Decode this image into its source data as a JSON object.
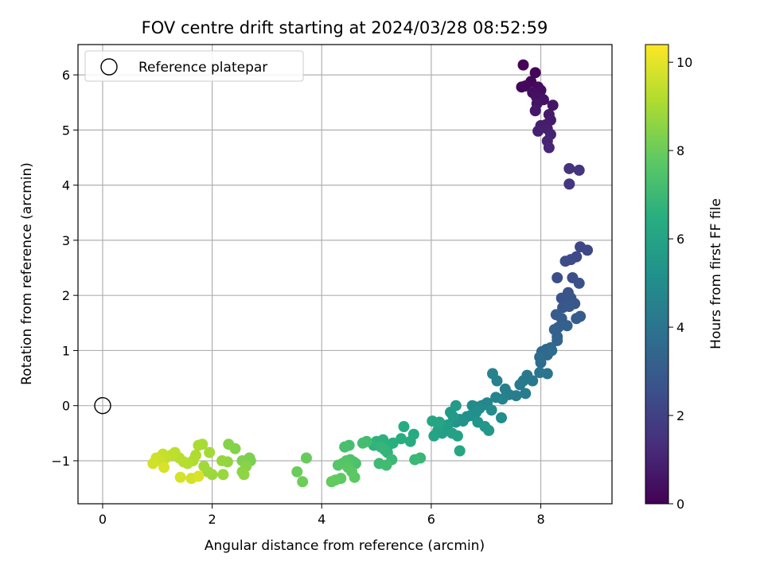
{
  "chart_data": {
    "type": "scatter",
    "title": "FOV centre drift starting at 2024/03/28 08:52:59",
    "xlabel": "Angular distance from reference (arcmin)",
    "ylabel": "Rotation from reference (arcmin)",
    "xlim": [
      -0.45,
      9.3
    ],
    "ylim": [
      -1.78,
      6.55
    ],
    "xticks": [
      0,
      2,
      4,
      6,
      8
    ],
    "yticks": [
      -1,
      0,
      1,
      2,
      3,
      4,
      5,
      6
    ],
    "grid": true,
    "legend": {
      "placement": "top-left",
      "entries": [
        "Reference platepar"
      ]
    },
    "colorbar": {
      "label": "Hours from first FF file",
      "range": [
        0,
        10.4
      ],
      "ticks": [
        0,
        2,
        4,
        6,
        8,
        10
      ],
      "colormap": "viridis"
    },
    "reference_point": {
      "name": "Reference platepar",
      "x": 0,
      "y": 0
    },
    "points": [
      [
        7.68,
        6.18,
        0.05
      ],
      [
        7.9,
        6.04,
        0.1
      ],
      [
        7.82,
        5.88,
        0.15
      ],
      [
        7.65,
        5.78,
        0.2
      ],
      [
        7.72,
        5.8,
        0.25
      ],
      [
        7.95,
        5.78,
        0.3
      ],
      [
        8.0,
        5.72,
        0.35
      ],
      [
        7.85,
        5.68,
        0.4
      ],
      [
        7.92,
        5.6,
        0.45
      ],
      [
        8.05,
        5.55,
        0.5
      ],
      [
        7.93,
        5.48,
        0.55
      ],
      [
        8.22,
        5.45,
        0.6
      ],
      [
        7.9,
        5.35,
        0.65
      ],
      [
        8.15,
        5.28,
        0.7
      ],
      [
        8.18,
        5.18,
        0.75
      ],
      [
        8.1,
        5.1,
        0.8
      ],
      [
        8.0,
        5.08,
        0.85
      ],
      [
        8.12,
        5.02,
        0.9
      ],
      [
        7.95,
        4.98,
        0.95
      ],
      [
        8.18,
        4.92,
        1.0
      ],
      [
        8.12,
        4.8,
        1.05
      ],
      [
        8.15,
        4.68,
        1.1
      ],
      [
        8.52,
        4.3,
        1.5
      ],
      [
        8.7,
        4.27,
        1.55
      ],
      [
        8.52,
        4.02,
        1.6
      ],
      [
        8.72,
        2.88,
        2.2
      ],
      [
        8.85,
        2.82,
        2.25
      ],
      [
        8.65,
        2.7,
        2.3
      ],
      [
        8.55,
        2.65,
        2.35
      ],
      [
        8.45,
        2.62,
        2.4
      ],
      [
        8.3,
        2.32,
        2.45
      ],
      [
        8.58,
        2.32,
        2.5
      ],
      [
        8.7,
        2.22,
        2.55
      ],
      [
        8.5,
        2.05,
        2.6
      ],
      [
        8.38,
        1.95,
        2.65
      ],
      [
        8.45,
        1.88,
        2.7
      ],
      [
        8.55,
        1.95,
        2.75
      ],
      [
        8.62,
        1.85,
        2.8
      ],
      [
        8.4,
        1.78,
        2.85
      ],
      [
        8.52,
        1.8,
        2.9
      ],
      [
        8.72,
        1.62,
        2.95
      ],
      [
        8.65,
        1.58,
        3.0
      ],
      [
        8.28,
        1.65,
        3.05
      ],
      [
        8.38,
        1.58,
        3.1
      ],
      [
        8.32,
        1.42,
        3.15
      ],
      [
        8.48,
        1.45,
        3.2
      ],
      [
        8.25,
        1.38,
        3.25
      ],
      [
        8.3,
        1.25,
        3.3
      ],
      [
        8.3,
        1.18,
        3.35
      ],
      [
        8.18,
        1.05,
        3.4
      ],
      [
        8.1,
        1.02,
        3.45
      ],
      [
        8.02,
        0.98,
        3.5
      ],
      [
        8.12,
        0.92,
        3.55
      ],
      [
        8.2,
        1.0,
        3.6
      ],
      [
        7.98,
        0.88,
        3.65
      ],
      [
        8.0,
        0.78,
        3.7
      ],
      [
        8.12,
        0.58,
        4.0
      ],
      [
        7.98,
        0.6,
        4.05
      ],
      [
        7.85,
        0.45,
        4.1
      ],
      [
        7.75,
        0.55,
        4.15
      ],
      [
        7.68,
        0.45,
        4.2
      ],
      [
        7.62,
        0.38,
        4.25
      ],
      [
        7.72,
        0.22,
        4.3
      ],
      [
        7.55,
        0.18,
        4.35
      ],
      [
        7.42,
        0.2,
        4.4
      ],
      [
        7.35,
        0.3,
        4.45
      ],
      [
        7.2,
        0.45,
        4.5
      ],
      [
        7.12,
        0.58,
        4.55
      ],
      [
        7.3,
        0.12,
        4.6
      ],
      [
        7.18,
        0.15,
        4.65
      ],
      [
        7.02,
        0.05,
        4.7
      ],
      [
        6.98,
        0.02,
        4.75
      ],
      [
        6.92,
        0.0,
        4.8
      ],
      [
        6.88,
        -0.05,
        4.85
      ],
      [
        6.8,
        -0.02,
        4.9
      ],
      [
        6.75,
        0.0,
        4.95
      ],
      [
        7.1,
        -0.08,
        5.0
      ],
      [
        7.28,
        -0.22,
        5.05
      ],
      [
        6.82,
        -0.12,
        5.1
      ],
      [
        6.72,
        -0.18,
        5.15
      ],
      [
        6.65,
        -0.2,
        5.2
      ],
      [
        6.58,
        -0.28,
        5.25
      ],
      [
        6.52,
        -0.25,
        5.3
      ],
      [
        6.45,
        -0.3,
        5.35
      ],
      [
        6.85,
        -0.3,
        5.4
      ],
      [
        6.98,
        -0.38,
        5.45
      ],
      [
        7.05,
        -0.45,
        5.5
      ],
      [
        6.4,
        -0.2,
        5.55
      ],
      [
        6.35,
        -0.12,
        5.6
      ],
      [
        6.45,
        0.0,
        5.65
      ],
      [
        6.3,
        -0.35,
        5.7
      ],
      [
        6.25,
        -0.4,
        5.75
      ],
      [
        6.2,
        -0.5,
        5.8
      ],
      [
        6.38,
        -0.5,
        5.85
      ],
      [
        6.48,
        -0.55,
        5.9
      ],
      [
        6.12,
        -0.45,
        5.95
      ],
      [
        6.05,
        -0.55,
        6.0
      ],
      [
        6.15,
        -0.3,
        6.05
      ],
      [
        6.02,
        -0.28,
        6.1
      ],
      [
        6.52,
        -0.82,
        6.15
      ],
      [
        5.68,
        -0.52,
        6.3
      ],
      [
        5.62,
        -0.65,
        6.35
      ],
      [
        5.5,
        -0.38,
        6.4
      ],
      [
        5.45,
        -0.6,
        6.45
      ],
      [
        5.3,
        -0.68,
        6.5
      ],
      [
        5.22,
        -0.72,
        6.55
      ],
      [
        5.12,
        -0.62,
        6.6
      ],
      [
        5.0,
        -0.65,
        6.65
      ],
      [
        4.95,
        -0.72,
        6.7
      ],
      [
        5.2,
        -0.85,
        6.75
      ],
      [
        5.15,
        -0.8,
        6.8
      ],
      [
        5.08,
        -0.75,
        6.85
      ],
      [
        5.8,
        -0.95,
        6.9
      ],
      [
        5.7,
        -0.98,
        6.95
      ],
      [
        5.28,
        -0.98,
        7.0
      ],
      [
        5.05,
        -1.05,
        7.05
      ],
      [
        5.18,
        -1.08,
        7.1
      ],
      [
        4.82,
        -0.65,
        7.15
      ],
      [
        4.75,
        -0.68,
        7.2
      ],
      [
        4.5,
        -0.72,
        7.25
      ],
      [
        4.42,
        -0.75,
        7.3
      ],
      [
        4.62,
        -1.05,
        7.35
      ],
      [
        4.58,
        -1.02,
        7.4
      ],
      [
        4.52,
        -0.98,
        7.45
      ],
      [
        4.45,
        -1.0,
        7.5
      ],
      [
        4.38,
        -1.05,
        7.55
      ],
      [
        4.3,
        -1.08,
        7.6
      ],
      [
        4.48,
        -1.12,
        7.65
      ],
      [
        4.55,
        -1.2,
        7.7
      ],
      [
        4.6,
        -1.3,
        7.75
      ],
      [
        4.35,
        -1.32,
        7.8
      ],
      [
        4.25,
        -1.35,
        7.85
      ],
      [
        4.18,
        -1.38,
        7.9
      ],
      [
        3.72,
        -0.95,
        7.95
      ],
      [
        3.55,
        -1.2,
        8.0
      ],
      [
        3.65,
        -1.38,
        8.05
      ],
      [
        2.7,
        -1.0,
        8.2
      ],
      [
        2.62,
        -1.05,
        8.25
      ],
      [
        2.68,
        -0.95,
        8.3
      ],
      [
        2.55,
        -1.0,
        8.35
      ],
      [
        2.42,
        -0.78,
        8.4
      ],
      [
        2.3,
        -0.7,
        8.45
      ],
      [
        2.62,
        -1.1,
        8.5
      ],
      [
        2.55,
        -1.2,
        8.55
      ],
      [
        2.58,
        -1.25,
        8.6
      ],
      [
        2.28,
        -1.02,
        8.65
      ],
      [
        2.18,
        -1.0,
        8.7
      ],
      [
        2.2,
        -1.25,
        8.75
      ],
      [
        2.0,
        -1.25,
        8.8
      ],
      [
        1.92,
        -1.2,
        8.85
      ],
      [
        1.85,
        -1.1,
        8.9
      ],
      [
        1.95,
        -0.85,
        8.95
      ],
      [
        1.82,
        -0.7,
        9.0
      ],
      [
        1.75,
        -0.72,
        9.05
      ],
      [
        1.7,
        -0.9,
        9.1
      ],
      [
        1.65,
        -1.0,
        9.15
      ],
      [
        1.55,
        -1.05,
        9.2
      ],
      [
        1.48,
        -1.02,
        9.25
      ],
      [
        1.4,
        -0.95,
        9.3
      ],
      [
        1.32,
        -0.85,
        9.35
      ],
      [
        1.25,
        -0.9,
        9.4
      ],
      [
        1.15,
        -0.95,
        9.45
      ],
      [
        1.1,
        -0.88,
        9.5
      ],
      [
        1.05,
        -1.0,
        9.55
      ],
      [
        0.98,
        -0.95,
        9.6
      ],
      [
        0.92,
        -1.05,
        9.65
      ],
      [
        1.62,
        -1.32,
        9.7
      ],
      [
        1.42,
        -1.3,
        9.75
      ],
      [
        1.12,
        -1.12,
        9.8
      ],
      [
        1.75,
        -1.28,
        9.85
      ]
    ]
  }
}
